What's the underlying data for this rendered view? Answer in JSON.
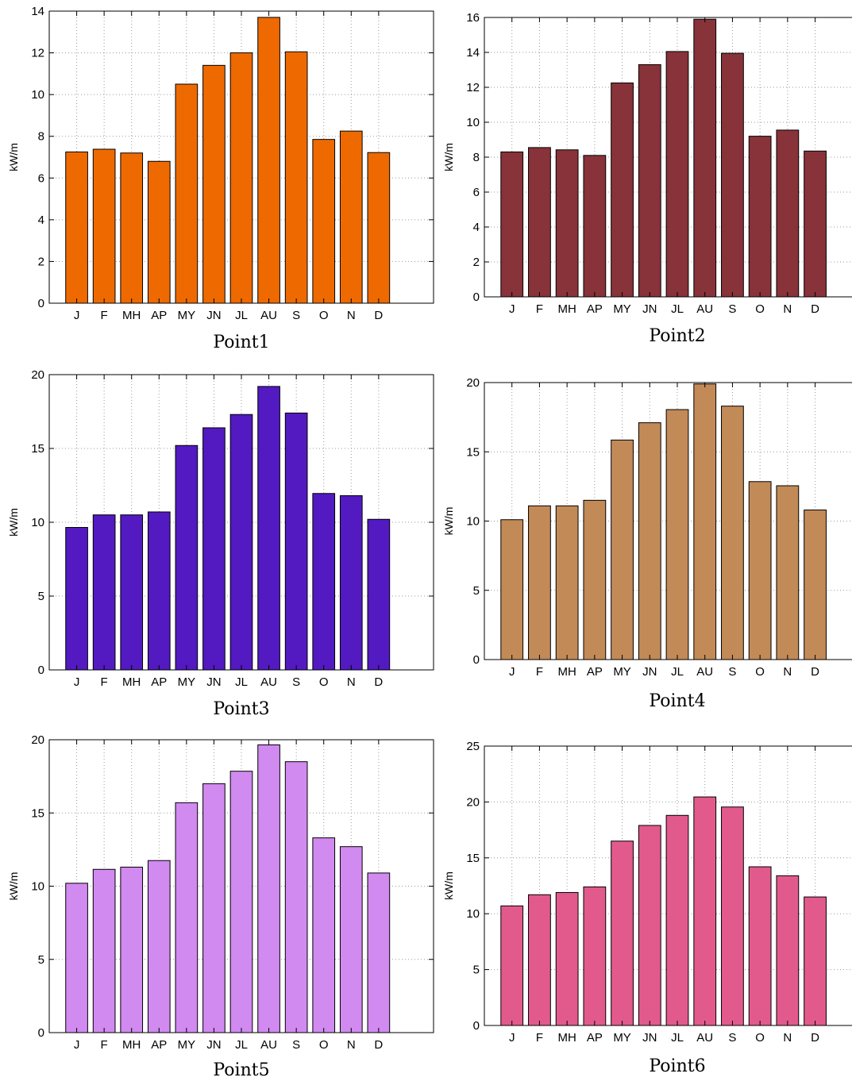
{
  "chart_data": [
    {
      "type": "bar",
      "title": "Point1",
      "ylabel": "kW/m",
      "xlabel": "",
      "color": "#EE6A00",
      "categories": [
        "J",
        "F",
        "MH",
        "AP",
        "MY",
        "JN",
        "JL",
        "AU",
        "S",
        "O",
        "N",
        "D"
      ],
      "values": [
        7.25,
        7.38,
        7.2,
        6.8,
        10.5,
        11.4,
        12.0,
        13.7,
        12.05,
        7.85,
        8.25,
        7.22
      ],
      "ylim": [
        0,
        14
      ],
      "yticks": [
        0,
        2,
        4,
        6,
        8,
        10,
        12,
        14
      ],
      "grid": true
    },
    {
      "type": "bar",
      "title": "Point2",
      "ylabel": "kW/m",
      "xlabel": "",
      "color": "#88323A",
      "categories": [
        "J",
        "F",
        "MH",
        "AP",
        "MY",
        "JN",
        "JL",
        "AU",
        "S",
        "O",
        "N",
        "D"
      ],
      "values": [
        8.3,
        8.55,
        8.42,
        8.1,
        12.25,
        13.3,
        14.05,
        15.9,
        13.95,
        9.2,
        9.55,
        8.35
      ],
      "ylim": [
        0,
        16
      ],
      "yticks": [
        0,
        2,
        4,
        6,
        8,
        10,
        12,
        14,
        16
      ],
      "grid": true
    },
    {
      "type": "bar",
      "title": "Point3",
      "ylabel": "kW/m",
      "xlabel": "",
      "color": "#521AC0",
      "categories": [
        "J",
        "F",
        "MH",
        "AP",
        "MY",
        "JN",
        "JL",
        "AU",
        "S",
        "O",
        "N",
        "D"
      ],
      "values": [
        9.65,
        10.5,
        10.5,
        10.7,
        15.2,
        16.4,
        17.3,
        19.2,
        17.4,
        11.95,
        11.8,
        10.2
      ],
      "ylim": [
        0,
        20
      ],
      "yticks": [
        0,
        5,
        10,
        15,
        20
      ],
      "grid": true
    },
    {
      "type": "bar",
      "title": "Point4",
      "ylabel": "kW/m",
      "xlabel": "",
      "color": "#C28A57",
      "categories": [
        "J",
        "F",
        "MH",
        "AP",
        "MY",
        "JN",
        "JL",
        "AU",
        "S",
        "O",
        "N",
        "D"
      ],
      "values": [
        10.1,
        11.1,
        11.1,
        11.5,
        15.85,
        17.1,
        18.05,
        19.9,
        18.3,
        12.85,
        12.55,
        10.8
      ],
      "ylim": [
        0,
        20
      ],
      "yticks": [
        0,
        5,
        10,
        15,
        20
      ],
      "grid": true
    },
    {
      "type": "bar",
      "title": "Point5",
      "ylabel": "kW/m",
      "xlabel": "",
      "color": "#D18AF0",
      "categories": [
        "J",
        "F",
        "MH",
        "AP",
        "MY",
        "JN",
        "JL",
        "AU",
        "S",
        "O",
        "N",
        "D"
      ],
      "values": [
        10.2,
        11.15,
        11.3,
        11.75,
        15.7,
        17.0,
        17.85,
        19.65,
        18.5,
        13.3,
        12.7,
        10.9
      ],
      "ylim": [
        0,
        20
      ],
      "yticks": [
        0,
        5,
        10,
        15,
        20
      ],
      "grid": true
    },
    {
      "type": "bar",
      "title": "Point6",
      "ylabel": "kW/m",
      "xlabel": "",
      "color": "#E25A8C",
      "categories": [
        "J",
        "F",
        "MH",
        "AP",
        "MY",
        "JN",
        "JL",
        "AU",
        "S",
        "O",
        "N",
        "D"
      ],
      "values": [
        10.7,
        11.7,
        11.9,
        12.4,
        16.5,
        17.9,
        18.8,
        20.45,
        19.55,
        14.2,
        13.4,
        11.5
      ],
      "ylim": [
        0,
        25
      ],
      "yticks": [
        0,
        5,
        10,
        15,
        20,
        25
      ],
      "grid": true
    }
  ]
}
